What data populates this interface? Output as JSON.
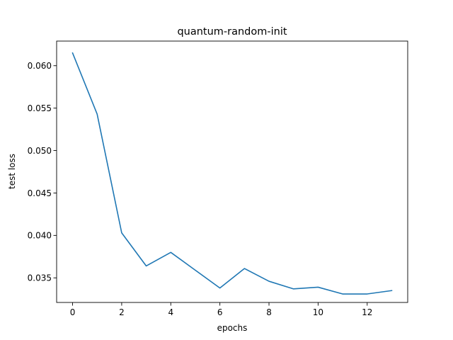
{
  "chart_data": {
    "type": "line",
    "title": "quantum-random-init",
    "xlabel": "epochs",
    "ylabel": "test loss",
    "x": [
      0,
      1,
      2,
      3,
      4,
      5,
      6,
      7,
      8,
      9,
      10,
      11,
      12,
      13
    ],
    "series": [
      {
        "values": [
          0.0615,
          0.0543,
          0.0403,
          0.0364,
          0.038,
          0.0359,
          0.0338,
          0.0361,
          0.0346,
          0.0337,
          0.0339,
          0.0331,
          0.0331,
          0.0335
        ],
        "color": "#1f77b4"
      }
    ],
    "xlim": [
      -0.65,
      13.65
    ],
    "ylim": [
      0.0321,
      0.0629
    ],
    "xticks": [
      0,
      2,
      4,
      6,
      8,
      10,
      12
    ],
    "xtick_labels": [
      "0",
      "2",
      "4",
      "6",
      "8",
      "10",
      "12"
    ],
    "yticks": [
      0.035,
      0.04,
      0.045,
      0.05,
      0.055,
      0.06
    ],
    "ytick_labels": [
      "0.035",
      "0.040",
      "0.045",
      "0.050",
      "0.055",
      "0.060"
    ],
    "grid": false,
    "legend": "none"
  }
}
